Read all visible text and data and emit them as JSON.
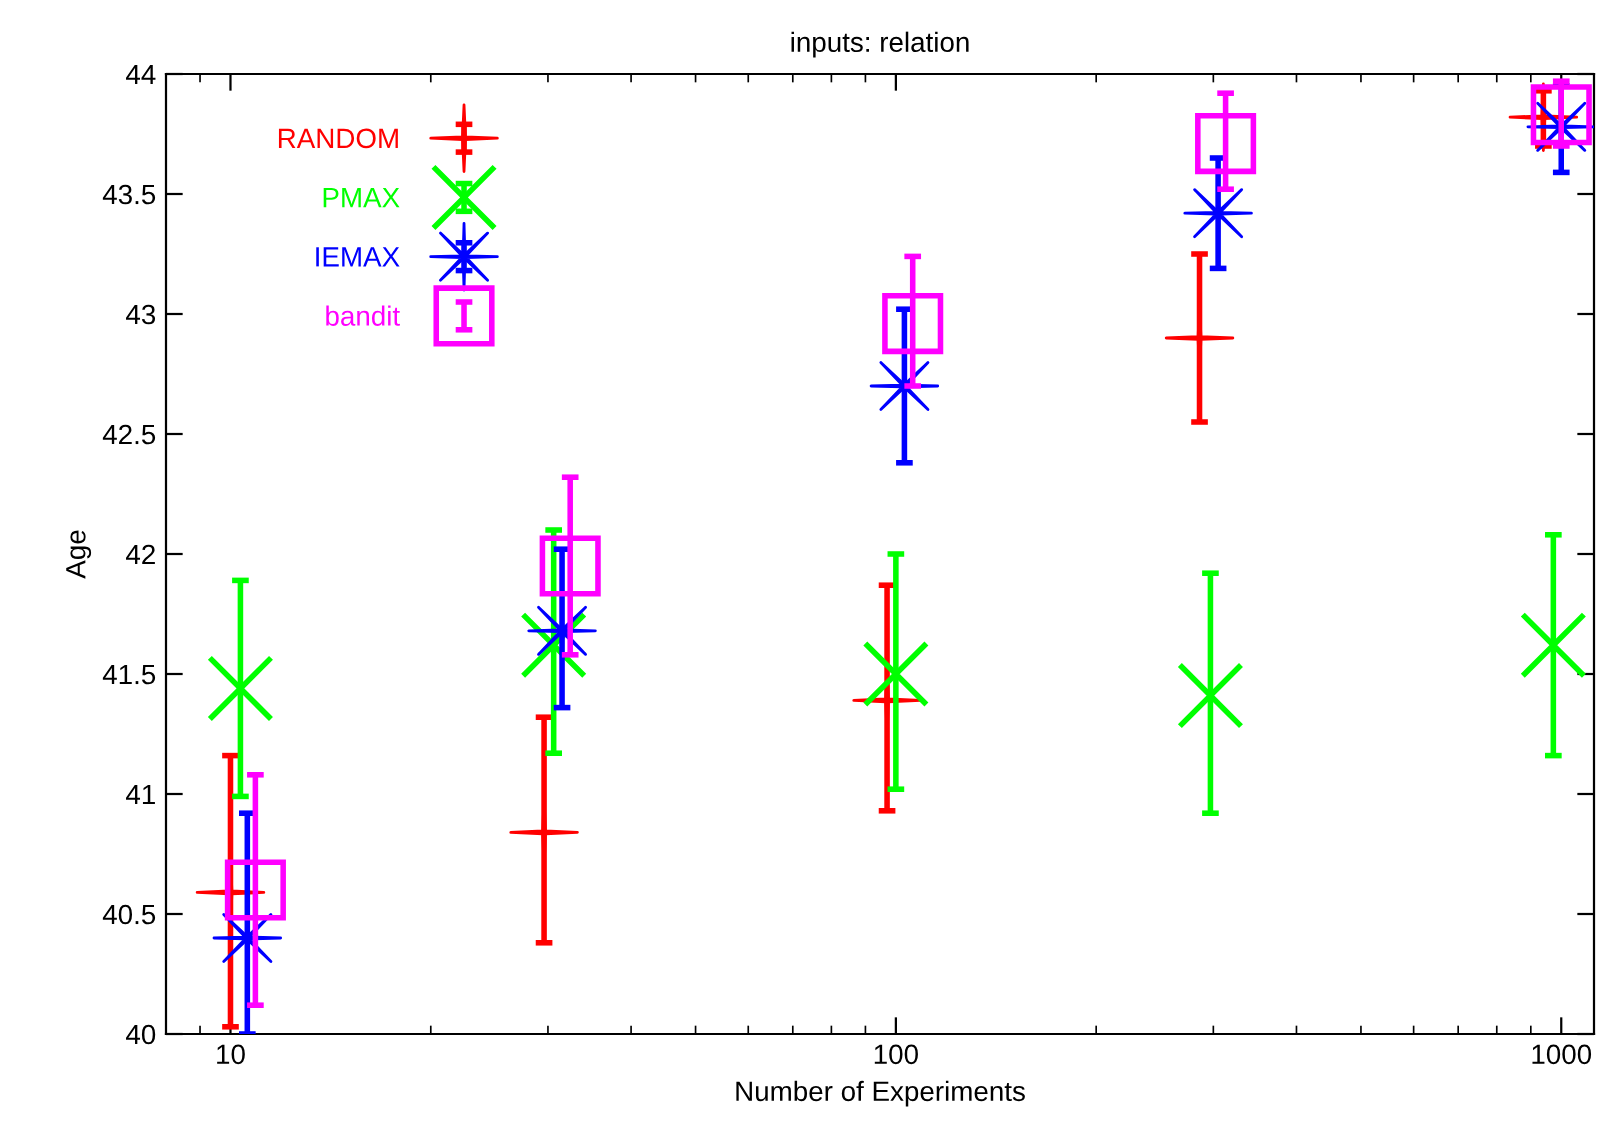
{
  "chart_data": {
    "type": "scatter",
    "title": "inputs: relation",
    "xlabel": "Number of Experiments",
    "ylabel": "Age",
    "log": "x",
    "xlim": [
      8,
      1120
    ],
    "xticks": [
      10,
      100,
      1000
    ],
    "ylim": [
      40,
      44
    ],
    "yticks": [
      40,
      40.5,
      41,
      41.5,
      42,
      42.5,
      43,
      43.5,
      44
    ],
    "legend": "top left",
    "grid": false,
    "series": [
      {
        "name": "RANDOM",
        "color": "#ff0000",
        "marker": "cross",
        "x": [
          10,
          29.6,
          97,
          286,
          940
        ],
        "values": [
          40.59,
          40.84,
          41.39,
          42.9,
          43.82
        ],
        "errors": [
          [
            40.03,
            41.16
          ],
          [
            40.38,
            41.32
          ],
          [
            40.93,
            41.87
          ],
          [
            42.55,
            43.25
          ],
          [
            43.7,
            43.93
          ]
        ]
      },
      {
        "name": "PMAX",
        "color": "#00ff00",
        "marker": "x",
        "x": [
          10.35,
          30.6,
          100,
          297,
          973
        ],
        "values": [
          41.44,
          41.62,
          41.5,
          41.41,
          41.62
        ],
        "errors": [
          [
            40.99,
            41.89
          ],
          [
            41.17,
            42.1
          ],
          [
            41.02,
            42.0
          ],
          [
            40.92,
            41.92
          ],
          [
            41.16,
            42.08
          ]
        ]
      },
      {
        "name": "IEMAX",
        "color": "#0000ff",
        "marker": "star",
        "x": [
          10.6,
          31.5,
          103,
          305,
          1000
        ],
        "values": [
          40.4,
          41.68,
          42.7,
          43.42,
          43.78
        ],
        "errors": [
          [
            40.0,
            40.92
          ],
          [
            41.36,
            42.02
          ],
          [
            42.38,
            43.02
          ],
          [
            43.19,
            43.65
          ],
          [
            43.59,
            43.95
          ]
        ]
      },
      {
        "name": "bandit",
        "color": "#ff00ff",
        "marker": "square",
        "x": [
          10.9,
          32.4,
          106,
          313,
          1000
        ],
        "values": [
          40.6,
          41.95,
          42.96,
          43.71,
          43.83
        ],
        "errors": [
          [
            40.12,
            41.08
          ],
          [
            41.58,
            42.32
          ],
          [
            42.7,
            43.24
          ],
          [
            43.52,
            43.92
          ],
          [
            43.7,
            43.97
          ]
        ]
      }
    ]
  }
}
